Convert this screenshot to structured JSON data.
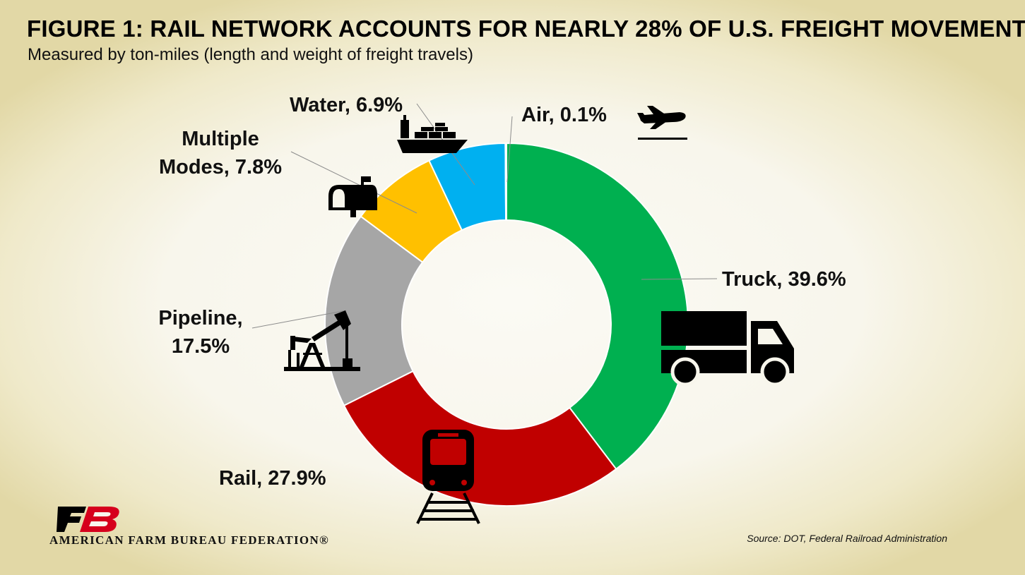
{
  "title": "FIGURE 1: RAIL NETWORK ACCOUNTS FOR NEARLY 28% OF U.S. FREIGHT MOVEMENT",
  "subtitle": "Measured by ton-miles (length and weight of freight travels)",
  "source": "Source: DOT, Federal Railroad Administration",
  "logo": {
    "text": "AMERICAN FARM BUREAU FEDERATION®",
    "mark": "FB"
  },
  "chart_data": {
    "type": "pie",
    "variant": "donut",
    "title": "FIGURE 1: RAIL NETWORK ACCOUNTS FOR NEARLY 28% OF U.S. FREIGHT MOVEMENT",
    "subtitle": "Measured by ton-miles (length and weight of freight travels)",
    "slices": [
      {
        "name": "Truck",
        "value": 39.6,
        "color": "#00b050",
        "icon": "truck-icon",
        "label_lines": [
          "Truck, 39.6%"
        ]
      },
      {
        "name": "Rail",
        "value": 27.9,
        "color": "#c00000",
        "icon": "train-icon",
        "label_lines": [
          "Rail, 27.9%"
        ]
      },
      {
        "name": "Pipeline",
        "value": 17.5,
        "color": "#a6a6a6",
        "icon": "oil-pump-icon",
        "label_lines": [
          "Pipeline,",
          "17.5%"
        ]
      },
      {
        "name": "Multiple Modes",
        "value": 7.8,
        "color": "#ffc000",
        "icon": "mailbox-icon",
        "label_lines": [
          "Multiple",
          "Modes, 7.8%"
        ]
      },
      {
        "name": "Water",
        "value": 6.9,
        "color": "#00b0f0",
        "icon": "ship-icon",
        "label_lines": [
          "Water, 6.9%"
        ]
      },
      {
        "name": "Air",
        "value": 0.1,
        "color": "#00b050",
        "icon": "airplane-icon",
        "label_lines": [
          "Air, 0.1%"
        ]
      }
    ],
    "legend": "none",
    "start_angle": "12 o'clock, clockwise"
  }
}
